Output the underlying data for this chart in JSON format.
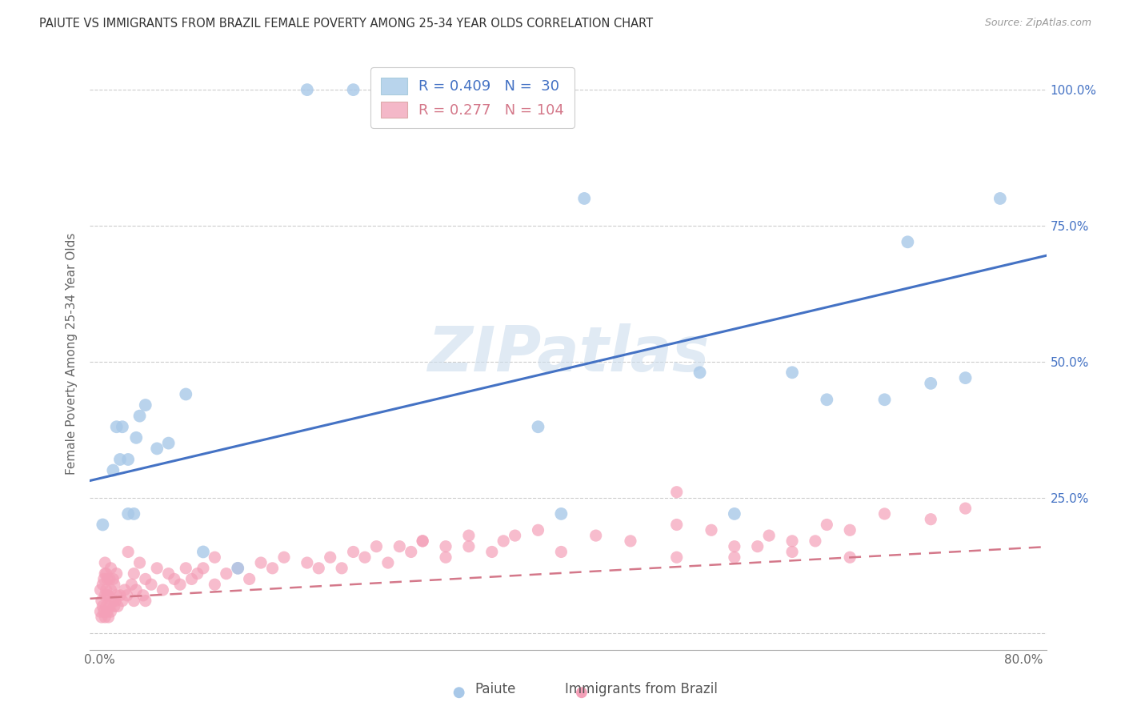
{
  "title": "PAIUTE VS IMMIGRANTS FROM BRAZIL FEMALE POVERTY AMONG 25-34 YEAR OLDS CORRELATION CHART",
  "source": "Source: ZipAtlas.com",
  "ylabel": "Female Poverty Among 25-34 Year Olds",
  "xlim_min": -0.008,
  "xlim_max": 0.82,
  "ylim_min": -0.03,
  "ylim_max": 1.06,
  "xtick_show": [
    0.0,
    0.8
  ],
  "ytick_positions": [
    0.0,
    0.25,
    0.5,
    0.75,
    1.0
  ],
  "paiute_R": 0.409,
  "paiute_N": 30,
  "brazil_R": 0.277,
  "brazil_N": 104,
  "paiute_color": "#a8c8e8",
  "brazil_color": "#f4a0b8",
  "paiute_line_color": "#4472C4",
  "brazil_line_color": "#d4788a",
  "legend_paiute_fill": "#b8d4ec",
  "legend_brazil_fill": "#f4b8c8",
  "watermark_color": "#ccdded",
  "background_color": "#ffffff",
  "grid_color": "#cccccc",
  "paiute_line_intercept": 0.285,
  "paiute_line_slope": 0.5,
  "brazil_line_intercept": 0.065,
  "brazil_line_slope": 0.115,
  "paiute_scatter_x": [
    0.003,
    0.012,
    0.015,
    0.018,
    0.02,
    0.025,
    0.025,
    0.03,
    0.032,
    0.035,
    0.04,
    0.05,
    0.06,
    0.075,
    0.09,
    0.12,
    0.18,
    0.22,
    0.38,
    0.4,
    0.42,
    0.52,
    0.55,
    0.6,
    0.63,
    0.68,
    0.7,
    0.72,
    0.75,
    0.78
  ],
  "paiute_scatter_y": [
    0.2,
    0.3,
    0.38,
    0.32,
    0.38,
    0.32,
    0.22,
    0.22,
    0.36,
    0.4,
    0.42,
    0.34,
    0.35,
    0.44,
    0.15,
    0.12,
    1.0,
    1.0,
    0.38,
    0.22,
    0.8,
    0.48,
    0.22,
    0.48,
    0.43,
    0.43,
    0.72,
    0.46,
    0.47,
    0.8
  ],
  "brazil_scatter_x": [
    0.001,
    0.001,
    0.002,
    0.002,
    0.003,
    0.003,
    0.004,
    0.004,
    0.005,
    0.005,
    0.005,
    0.005,
    0.006,
    0.006,
    0.006,
    0.007,
    0.007,
    0.007,
    0.008,
    0.008,
    0.009,
    0.009,
    0.01,
    0.01,
    0.01,
    0.012,
    0.012,
    0.013,
    0.013,
    0.014,
    0.015,
    0.015,
    0.016,
    0.018,
    0.02,
    0.022,
    0.024,
    0.025,
    0.028,
    0.03,
    0.03,
    0.032,
    0.035,
    0.038,
    0.04,
    0.04,
    0.045,
    0.05,
    0.055,
    0.06,
    0.065,
    0.07,
    0.075,
    0.08,
    0.085,
    0.09,
    0.1,
    0.1,
    0.11,
    0.12,
    0.13,
    0.14,
    0.15,
    0.16,
    0.18,
    0.19,
    0.2,
    0.21,
    0.22,
    0.23,
    0.24,
    0.25,
    0.26,
    0.27,
    0.28,
    0.3,
    0.32,
    0.34,
    0.36,
    0.5,
    0.5,
    0.55,
    0.57,
    0.6,
    0.62,
    0.65,
    0.28,
    0.3,
    0.32,
    0.35,
    0.38,
    0.4,
    0.43,
    0.46,
    0.5,
    0.53,
    0.55,
    0.58,
    0.6,
    0.63,
    0.65,
    0.68,
    0.72,
    0.75
  ],
  "brazil_scatter_y": [
    0.04,
    0.08,
    0.03,
    0.06,
    0.05,
    0.09,
    0.04,
    0.1,
    0.03,
    0.07,
    0.11,
    0.13,
    0.05,
    0.08,
    0.11,
    0.04,
    0.07,
    0.1,
    0.03,
    0.07,
    0.05,
    0.1,
    0.04,
    0.08,
    0.12,
    0.06,
    0.1,
    0.05,
    0.09,
    0.06,
    0.07,
    0.11,
    0.05,
    0.07,
    0.06,
    0.08,
    0.07,
    0.15,
    0.09,
    0.06,
    0.11,
    0.08,
    0.13,
    0.07,
    0.06,
    0.1,
    0.09,
    0.12,
    0.08,
    0.11,
    0.1,
    0.09,
    0.12,
    0.1,
    0.11,
    0.12,
    0.09,
    0.14,
    0.11,
    0.12,
    0.1,
    0.13,
    0.12,
    0.14,
    0.13,
    0.12,
    0.14,
    0.12,
    0.15,
    0.14,
    0.16,
    0.13,
    0.16,
    0.15,
    0.17,
    0.14,
    0.16,
    0.15,
    0.18,
    0.26,
    0.14,
    0.14,
    0.16,
    0.15,
    0.17,
    0.14,
    0.17,
    0.16,
    0.18,
    0.17,
    0.19,
    0.15,
    0.18,
    0.17,
    0.2,
    0.19,
    0.16,
    0.18,
    0.17,
    0.2,
    0.19,
    0.22,
    0.21,
    0.23
  ]
}
